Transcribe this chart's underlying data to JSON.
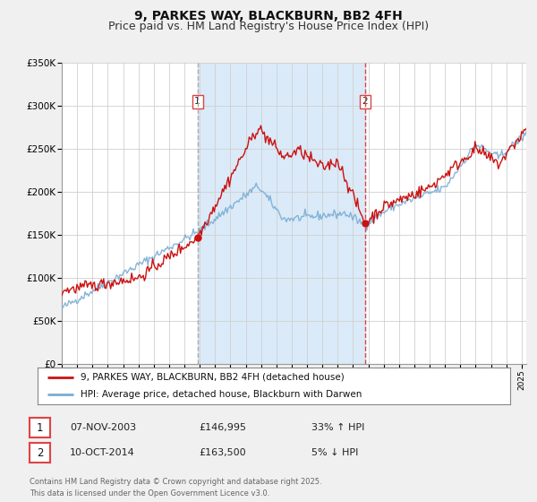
{
  "title": "9, PARKES WAY, BLACKBURN, BB2 4FH",
  "subtitle": "Price paid vs. HM Land Registry's House Price Index (HPI)",
  "ylim": [
    0,
    350000
  ],
  "yticks": [
    0,
    50000,
    100000,
    150000,
    200000,
    250000,
    300000,
    350000
  ],
  "ytick_labels": [
    "£0",
    "£50K",
    "£100K",
    "£150K",
    "£200K",
    "£250K",
    "£300K",
    "£350K"
  ],
  "hpi_color": "#7aadd4",
  "price_color": "#cc1111",
  "background_color": "#f0f0f0",
  "plot_bg_color": "#ffffff",
  "shade_color": "#daeaf8",
  "vline1_color": "#aaaaaa",
  "vline2_color": "#dd4444",
  "marker1_date": 2003.85,
  "marker1_price": 146995,
  "marker2_date": 2014.78,
  "marker2_price": 163500,
  "legend1": "9, PARKES WAY, BLACKBURN, BB2 4FH (detached house)",
  "legend2": "HPI: Average price, detached house, Blackburn with Darwen",
  "annotation1_date": "07-NOV-2003",
  "annotation1_price": "£146,995",
  "annotation1_hpi": "33% ↑ HPI",
  "annotation2_date": "10-OCT-2014",
  "annotation2_price": "£163,500",
  "annotation2_hpi": "5% ↓ HPI",
  "footer": "Contains HM Land Registry data © Crown copyright and database right 2025.\nThis data is licensed under the Open Government Licence v3.0.",
  "title_fontsize": 10,
  "subtitle_fontsize": 9
}
